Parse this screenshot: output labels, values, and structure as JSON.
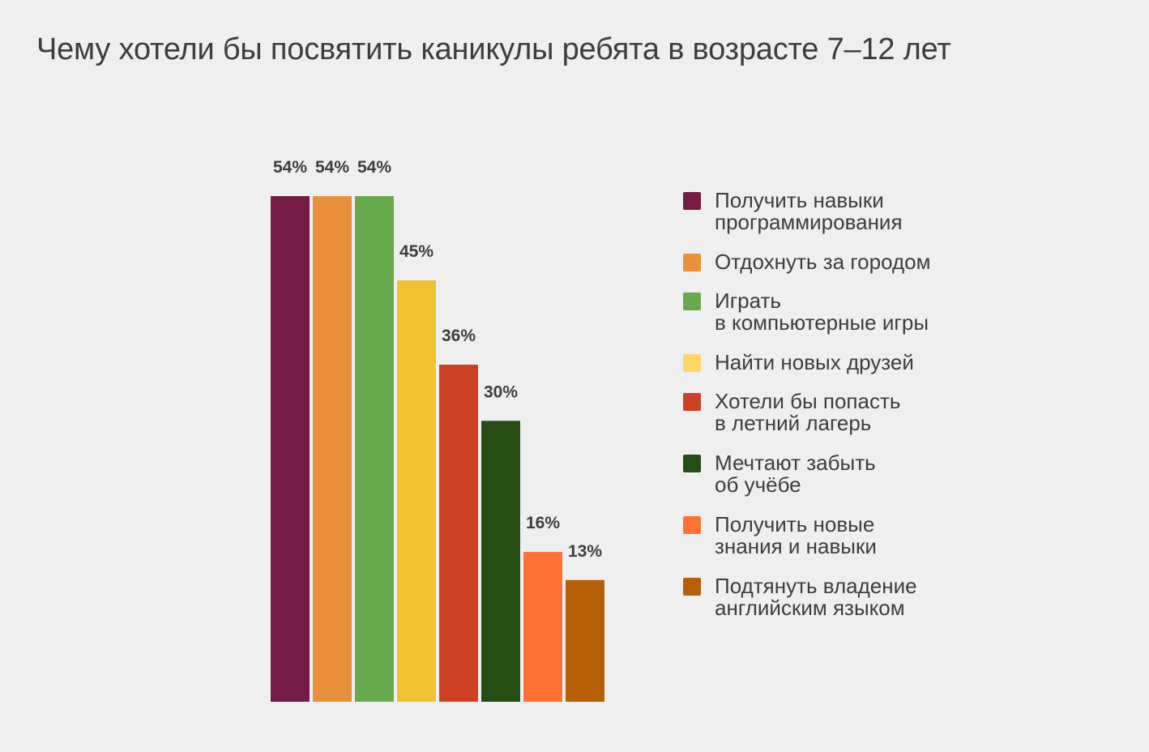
{
  "chart_data": {
    "type": "bar",
    "title": "Чему хотели бы посвятить каникулы ребята в возрасте 7–12 лет",
    "categories": [
      "Получить навыки\nпрограммирования",
      "Отдохнуть за городом",
      "Играть\nв компьютерные игры",
      "Найти новых друзей",
      "Хотели бы попасть\nв летний лагерь",
      "Мечтают забыть\nоб учёбе",
      "Получить новые\nзнания и навыки",
      "Подтянуть владение\nанглийским языком"
    ],
    "values": [
      54,
      54,
      54,
      45,
      36,
      30,
      16,
      13
    ],
    "data_labels": [
      "54%",
      "54%",
      "54%",
      "45%",
      "36%",
      "30%",
      "16%",
      "13%"
    ],
    "bar_colors": [
      "#761b45",
      "#e8913a",
      "#68a94e",
      "#f0c233",
      "#cc4024",
      "#264e14",
      "#fe7134",
      "#b55f07"
    ],
    "legend_colors": [
      "#761b45",
      "#e8913a",
      "#68a94e",
      "#fdd864",
      "#cc4024",
      "#264e14",
      "#fe7134",
      "#b55f07"
    ],
    "unit": "%",
    "ylim": [
      0,
      54
    ],
    "grid": false,
    "legend_position": "right"
  }
}
